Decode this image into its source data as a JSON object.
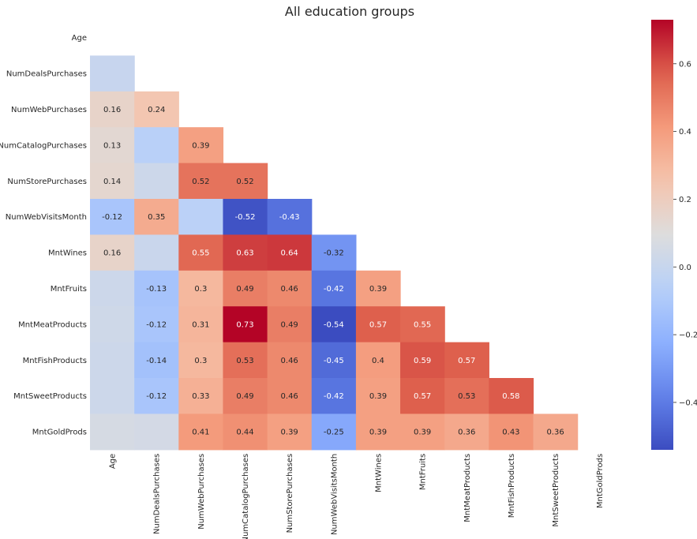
{
  "chart_data": {
    "type": "heatmap",
    "title": "All education groups",
    "xlabel": "",
    "ylabel": "",
    "variables": [
      "Age",
      "NumDealsPurchases",
      "NumWebPurchases",
      "NumCatalogPurchases",
      "NumStorePurchases",
      "NumWebVisitsMonth",
      "MntWines",
      "MntFruits",
      "MntMeatProducts",
      "MntFishProducts",
      "MntSweetProducts",
      "MntGoldProds"
    ],
    "mask": "upper-triangle-and-diagonal",
    "colormap": "coolwarm",
    "colorbar_range": [
      -0.54,
      0.73
    ],
    "colorbar_ticks": [
      -0.4,
      -0.2,
      0.0,
      0.2,
      0.4,
      0.6
    ],
    "colorbar_tick_labels": [
      "−0.4",
      "−0.2",
      "0.0",
      "0.2",
      "0.4",
      "0.6"
    ],
    "values": [
      [],
      [
        0.0
      ],
      [
        0.16,
        0.24
      ],
      [
        0.13,
        -0.06,
        0.39
      ],
      [
        0.14,
        0.02,
        0.52,
        0.52
      ],
      [
        -0.12,
        0.35,
        -0.05,
        -0.52,
        -0.43
      ],
      [
        0.16,
        0.01,
        0.55,
        0.63,
        0.64,
        -0.32
      ],
      [
        0.02,
        -0.13,
        0.3,
        0.49,
        0.46,
        -0.42,
        0.39
      ],
      [
        0.03,
        -0.12,
        0.31,
        0.73,
        0.49,
        -0.54,
        0.57,
        0.55
      ],
      [
        0.02,
        -0.14,
        0.3,
        0.53,
        0.46,
        -0.45,
        0.4,
        0.59,
        0.57
      ],
      [
        0.02,
        -0.12,
        0.33,
        0.49,
        0.46,
        -0.42,
        0.39,
        0.57,
        0.53,
        0.58
      ],
      [
        0.06,
        0.05,
        0.41,
        0.44,
        0.39,
        -0.25,
        0.39,
        0.39,
        0.36,
        0.43,
        0.36
      ]
    ],
    "annotations": [
      [],
      [
        ""
      ],
      [
        "0.16",
        "0.24"
      ],
      [
        "0.13",
        "",
        "0.39"
      ],
      [
        "0.14",
        "",
        "0.52",
        "0.52"
      ],
      [
        "-0.12",
        "0.35",
        "",
        "-0.52",
        "-0.43"
      ],
      [
        "0.16",
        "",
        "0.55",
        "0.63",
        "0.64",
        "-0.32"
      ],
      [
        "",
        "-0.13",
        "0.3",
        "0.49",
        "0.46",
        "-0.42",
        "0.39"
      ],
      [
        "",
        "-0.12",
        "0.31",
        "0.73",
        "0.49",
        "-0.54",
        "0.57",
        "0.55"
      ],
      [
        "",
        "-0.14",
        "0.3",
        "0.53",
        "0.46",
        "-0.45",
        "0.4",
        "0.59",
        "0.57"
      ],
      [
        "",
        "-0.12",
        "0.33",
        "0.49",
        "0.46",
        "-0.42",
        "0.39",
        "0.57",
        "0.53",
        "0.58"
      ],
      [
        "",
        "",
        "0.41",
        "0.44",
        "0.39",
        "-0.25",
        "0.39",
        "0.39",
        "0.36",
        "0.43",
        "0.36"
      ]
    ]
  }
}
